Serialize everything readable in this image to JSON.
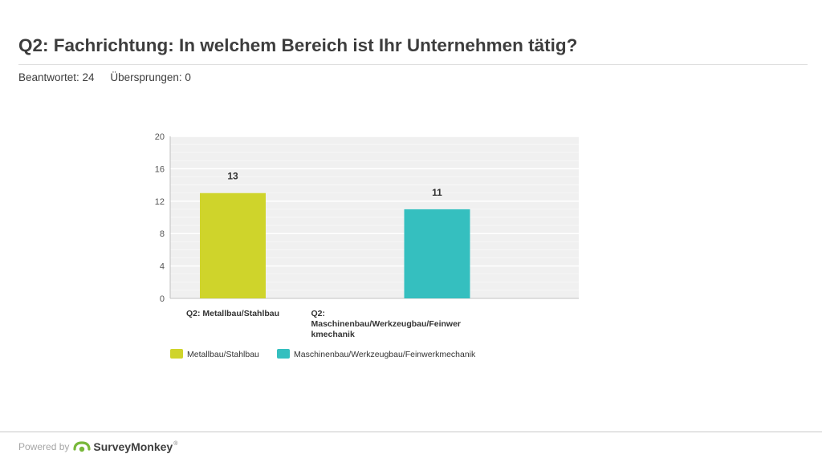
{
  "header": {
    "title": "Q2: Fachrichtung: In welchem Bereich ist Ihr Unternehmen tätig?",
    "answered": "Beantwortet: 24",
    "skipped": "Übersprungen: 0"
  },
  "chart_data": {
    "type": "bar",
    "categories": [
      "Q2: Metallbau/Stahlbau",
      "Q2: Maschinenbau/Werkzeugbau/Feinwerkmechanik"
    ],
    "category_label_lines": [
      [
        "Q2: Metallbau/Stahlbau"
      ],
      [
        "Q2:",
        "Maschinenbau/Werkzeugbau/Feinwer",
        "kmechanik"
      ]
    ],
    "values": [
      13,
      11
    ],
    "data_labels": [
      "13",
      "11"
    ],
    "colors": [
      "#cfd42b",
      "#35bfbf"
    ],
    "legend": [
      "Metallbau/Stahlbau",
      "Maschinenbau/Werkzeugbau/Feinwerkmechanik"
    ],
    "legend_position": "bottom-left",
    "ylim": [
      0,
      20
    ],
    "yticks": [
      "0",
      "4",
      "8",
      "12",
      "16",
      "20"
    ],
    "grid": true,
    "title": "",
    "xlabel": "",
    "ylabel": ""
  },
  "footer": {
    "powered_by": "Powered by",
    "brand": "SurveyMonkey",
    "trademark": "®",
    "icon": "surveymonkey-logo-icon"
  }
}
